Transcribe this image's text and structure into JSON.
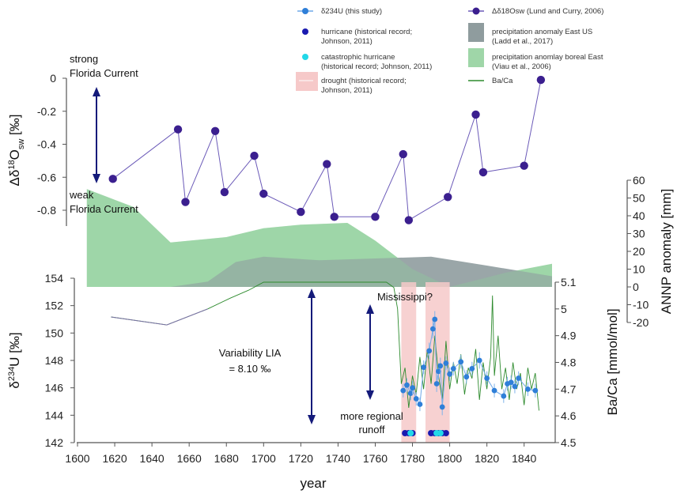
{
  "chart_data": {
    "type": "line",
    "xlabel": "year",
    "x_ticks": [
      "1600",
      "1620",
      "1640",
      "1660",
      "1680",
      "1700",
      "1720",
      "1740",
      "1760",
      "1780",
      "1800",
      "1820",
      "1840"
    ],
    "xlim": [
      1600,
      1855
    ],
    "axes": {
      "d18O": {
        "label_main": "Δδ",
        "label_sup": "18",
        "label_rest": "O",
        "label_sub": "sw",
        "label_unit": " [‰]",
        "ticks": [
          "0",
          "-0.2",
          "-0.4",
          "-0.6",
          "-0.8"
        ],
        "ylim": [
          -0.85,
          0
        ]
      },
      "annp": {
        "label": "ANNP anomaly [mm]",
        "ticks": [
          "60",
          "50",
          "40",
          "30",
          "20",
          "10",
          "0",
          "-10",
          "-20"
        ],
        "ylim": [
          -20,
          60
        ]
      },
      "u234": {
        "label_main": "δ",
        "label_sup": "234",
        "label_rest": "U [‰]",
        "ticks": [
          "154",
          "152",
          "150",
          "148",
          "146",
          "144",
          "142"
        ],
        "ylim": [
          142,
          154
        ]
      },
      "baca": {
        "label": "Ba/Ca [mmol/mol]",
        "ticks": [
          "5.1",
          "5",
          "4.9",
          "4.8",
          "4.7",
          "4.6",
          "4.5"
        ],
        "ylim": [
          4.5,
          5.1
        ]
      }
    },
    "series": [
      {
        "name": "Δδ18Osw (Lund and Curry, 2006)",
        "axis": "d18O",
        "color": "#3b1f8f",
        "x": [
          1619,
          1654,
          1658,
          1674,
          1679,
          1695,
          1700,
          1720,
          1734,
          1738,
          1760,
          1775,
          1778,
          1799,
          1814,
          1818,
          1840,
          1849
        ],
        "y": [
          -0.61,
          -0.31,
          -0.75,
          -0.32,
          -0.69,
          -0.47,
          -0.7,
          -0.81,
          -0.52,
          -0.84,
          -0.84,
          -0.46,
          -0.86,
          -0.72,
          -0.22,
          -0.57,
          -0.53,
          -0.01
        ]
      },
      {
        "name": "precipitation anomaly East US (Ladd et al., 2017)",
        "axis": "annp",
        "color": "#8f9c9e",
        "x": [
          1605,
          1650,
          1670,
          1685,
          1700,
          1730,
          1760,
          1790,
          1820,
          1855
        ],
        "y": [
          0,
          0,
          3,
          14,
          17,
          15,
          16,
          17,
          12,
          6
        ]
      },
      {
        "name": "precipitation anomlay boreal East (Viau et al., 2006)",
        "axis": "annp",
        "color": "#9fd6a8",
        "x": [
          1605,
          1615,
          1630,
          1650,
          1680,
          1700,
          1720,
          1745,
          1760,
          1780,
          1800,
          1830,
          1855
        ],
        "y": [
          55,
          51,
          45,
          25,
          28,
          33,
          35,
          36,
          26,
          10,
          0,
          8,
          13
        ]
      },
      {
        "name": "δ234U (this study)",
        "axis": "u234",
        "color": "#2f7fd8",
        "x": [
          1775,
          1777,
          1779,
          1780,
          1782,
          1784,
          1786,
          1789,
          1791,
          1792,
          1793,
          1794,
          1795,
          1796,
          1798,
          1800,
          1802,
          1806,
          1809,
          1812,
          1816,
          1820,
          1824,
          1829,
          1831,
          1833,
          1835,
          1837,
          1842,
          1846
        ],
        "y": [
          145.8,
          146.2,
          145.6,
          146.0,
          145.2,
          144.8,
          147.5,
          148.7,
          150.3,
          151.0,
          146.3,
          147.2,
          147.6,
          144.6,
          147.8,
          147.0,
          147.4,
          147.9,
          146.8,
          147.4,
          148.0,
          146.7,
          145.8,
          145.4,
          146.3,
          146.4,
          146.1,
          146.7,
          145.9,
          145.8
        ],
        "yerr": [
          0.5,
          0.5,
          0.5,
          0.5,
          0.5,
          0.5,
          0.5,
          0.6,
          0.7,
          0.6,
          0.6,
          0.6,
          0.6,
          0.6,
          0.5,
          0.5,
          0.5,
          0.5,
          0.5,
          0.5,
          0.6,
          0.5,
          0.5,
          0.5,
          0.5,
          0.5,
          0.5,
          0.5,
          0.5,
          0.5
        ]
      },
      {
        "name": "Ba/Ca",
        "axis": "baca",
        "color": "#2e8b2e",
        "x": [
          1618,
          1648,
          1670,
          1682,
          1692,
          1700,
          1712,
          1722,
          1735,
          1747,
          1760,
          1766,
          1770,
          1772,
          1774,
          1776,
          1778,
          1780,
          1782,
          1784,
          1786,
          1788,
          1790,
          1792,
          1794,
          1796,
          1798,
          1800,
          1802,
          1804,
          1806,
          1808,
          1810,
          1812,
          1814,
          1816,
          1818,
          1820,
          1822,
          1823,
          1824,
          1826,
          1828,
          1830,
          1832,
          1834,
          1836,
          1838,
          1840,
          1842,
          1844,
          1846,
          1848
        ],
        "y": [
          4.97,
          4.94,
          5.0,
          5.04,
          5.07,
          5.1,
          5.1,
          5.1,
          5.1,
          5.1,
          5.1,
          5.1,
          5.08,
          5.0,
          4.72,
          4.78,
          4.63,
          4.75,
          4.68,
          4.82,
          4.7,
          4.85,
          4.72,
          4.9,
          4.75,
          4.66,
          4.88,
          4.7,
          4.8,
          4.72,
          4.83,
          4.68,
          4.78,
          4.74,
          4.85,
          4.66,
          4.8,
          4.7,
          4.82,
          5.05,
          4.75,
          4.9,
          4.7,
          4.78,
          4.66,
          4.8,
          4.7,
          4.76,
          4.64,
          4.78,
          4.7,
          4.76,
          4.62
        ]
      }
    ],
    "events": {
      "hurricane_years": [
        1776,
        1778,
        1780,
        1790,
        1792,
        1794,
        1796,
        1798
      ],
      "catastrophic_hurricane_years": [
        1779,
        1793,
        1795
      ],
      "drought_periods": [
        [
          1774,
          1782
        ],
        [
          1787,
          1800
        ]
      ]
    },
    "annotations": {
      "strong": "strong",
      "florida1": "Florida Current",
      "weak": "weak",
      "florida2": "Florida Current",
      "lia1": "Variability LIA",
      "lia2": "= 8.10 ‰",
      "mississippi": "Mississippi?",
      "runoff1": "more regional",
      "runoff2": "runoff"
    },
    "legend": [
      {
        "key": "u234",
        "lines": [
          "δ234U (this study)"
        ]
      },
      {
        "key": "hurricane",
        "lines": [
          "hurricane (historical record;",
          "Johnson, 2011)"
        ]
      },
      {
        "key": "cat",
        "lines": [
          "catastrophic hurricane",
          "(historical record; Johnson, 2011)"
        ]
      },
      {
        "key": "drought",
        "lines": [
          "drought (historical record;",
          "Johnson, 2011)"
        ]
      },
      {
        "key": "d18o",
        "lines": [
          "Δδ18Osw (Lund and Curry, 2006)"
        ]
      },
      {
        "key": "eastus",
        "lines": [
          "precipitation anomaly East US",
          "(Ladd et al., 2017)"
        ]
      },
      {
        "key": "boreal",
        "lines": [
          "precipitation anomlay boreal East",
          "(Viau et al., 2006)"
        ]
      },
      {
        "key": "baca",
        "lines": [
          "Ba/Ca"
        ]
      }
    ],
    "colors": {
      "hurricane": "#1a1ab0",
      "catastrophic": "#22d8e8",
      "drought": "#f6c9c9",
      "arrow": "#141a7a"
    }
  }
}
